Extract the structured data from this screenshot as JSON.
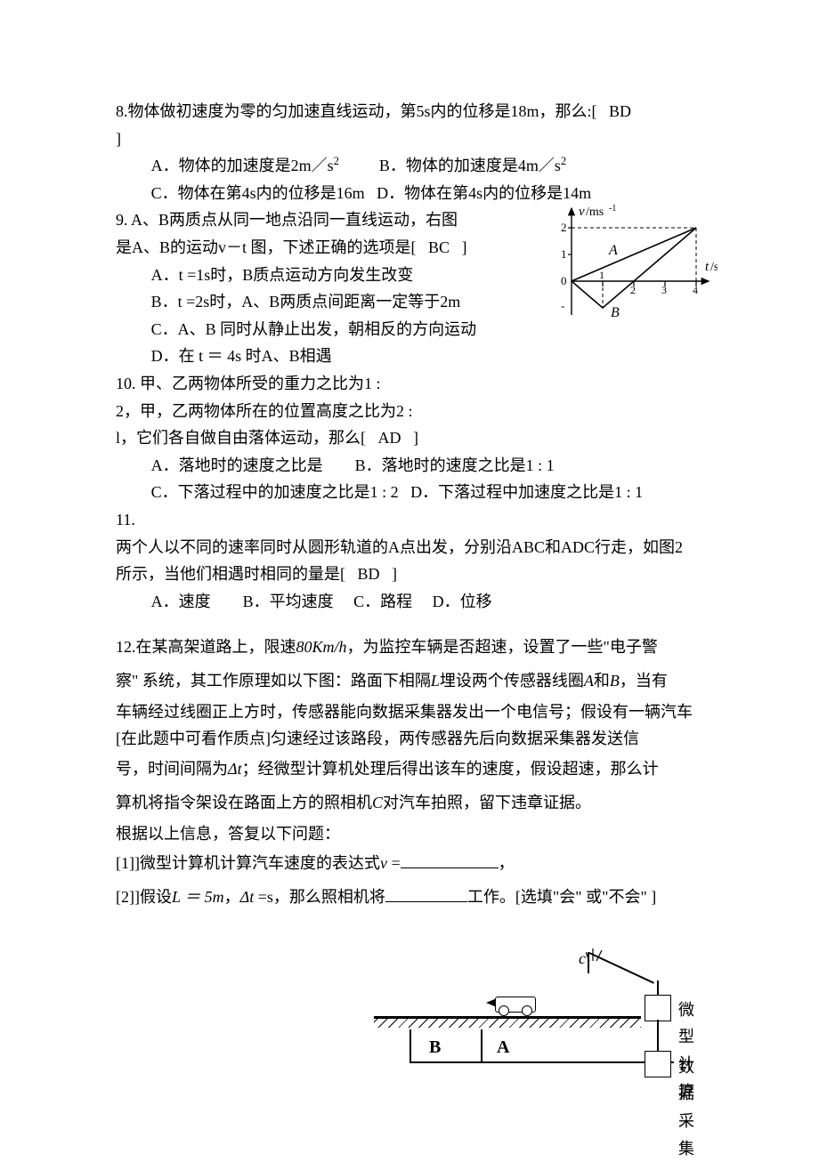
{
  "q8": {
    "stem_a": "8.物体做初速度为零的匀加速直线运动，第5s内的位移是18m，那么:[",
    "stem_answer": "BD",
    "stem_b": "]",
    "optA": "A．物体的加速度是2m／s",
    "optA_exp": "2",
    "optB": "B．物体的加速度是4m／s",
    "optB_exp": "2",
    "optC": "C．物体在第4s内的位移是16m",
    "optD": "D．物体在第4s内的位移是14m"
  },
  "q9": {
    "line1": "9.  A、B两质点从同一地点沿同一直线运动，右图",
    "line2_a": "是A、B的运动v－t 图，下述正确的选项是[",
    "answer": "BC",
    "line2_b": "]",
    "optA": "A．t =1s时，B质点运动方向发生改变",
    "optB": "B．t =2s时，A、B两质点间距离一定等于2m",
    "optC": "C．A、B 同时从静止出发，朝相反的方向运动",
    "optD": "D．在 t ＝ 4s 时A、B相遇"
  },
  "q10": {
    "line1": "10.  甲、乙两物体所受的重力之比为1 :",
    "line2": "2，甲，乙两物体所在的位置高度之比为2 :",
    "line3_a": "l，它们各自做自由落体运动，那么[",
    "answer": "AD",
    "line3_b": "]",
    "optA": "A．落地时的速度之比是",
    "optB": "B．落地时的速度之比是1 : 1",
    "optC": "C．下落过程中的加速度之比是1 : 2",
    "optD": "D．下落过程中加速度之比是1 : 1"
  },
  "q11": {
    "line1": "11.",
    "line2": "两个人以不同的速率同时从圆形轨道的A点出发，分别沿ABC和ADC行走，如图2",
    "line3_a": "所示，当他们相遇时相同的量是[",
    "answer": "BD",
    "line3_b": "]",
    "optA": "A．速度",
    "optB": "B．平均速度",
    "optC": "C．路程",
    "optD": "D．位移"
  },
  "q12": {
    "p1_a": "12.在某高架道路上，限速",
    "speed": "80Km/h",
    "p1_b": "，为监控车辆是否超速，设置了一些\"电子警",
    "p2_a": "察\" 系统，其工作原理如以下图：路面下相隔",
    "L": "L",
    "p2_b": "埋设两个传感器线圈",
    "A": "A",
    "p2_c": "和",
    "B": "B",
    "p2_d": "，当有",
    "p3": "车辆经过线圈正上方时，传感器能向数据采集器发出一个电信号；假设有一辆汽车[在此题中可看作质点]匀速经过该路段，两传感器先后向数据采集器发送信",
    "p4_a": "号，时间间隔为",
    "dt": "Δt",
    "p4_b": "；经微型计算机处理后得出该车的速度，假设超速，那么计",
    "p5_a": "算机将指令架设在路面上方的照相机",
    "C": "C",
    "p5_b": "对汽车拍照，留下违章证据。",
    "p6": "根据以上信息，答复以下问题：",
    "sub1_a": "[1]]微型计算机计算汽车速度的表达式",
    "v": "v",
    "sub1_b": " =",
    "sub1_c": "，",
    "sub2_a": "[2]]假设",
    "sub2_b": "L ＝ 5m",
    "sub2_c": "，",
    "sub2_d": "Δt",
    "sub2_e": " =s，那么照相机将",
    "sub2_f": "工作。[选填\"会\" 或\"不会\" ]"
  },
  "graph": {
    "ylabel": "v/ms",
    "ylabel_exp": "-1",
    "xlabel": "t/s",
    "A": "A",
    "B": "B",
    "ticks_x": [
      "1",
      "2",
      "3",
      "4"
    ],
    "ticks_y": [
      "1",
      "2"
    ],
    "minus": "-",
    "ymax": 2,
    "ymin": -1,
    "xmax": 4,
    "axis_color": "#000000",
    "dash_color": "#000000",
    "line_width": 1.4
  },
  "diagram": {
    "B": "B",
    "A": "A",
    "C": "c",
    "label1": "微型计算",
    "label2": "数据采集",
    "underline1_width": 110,
    "underline2_width": 92
  }
}
